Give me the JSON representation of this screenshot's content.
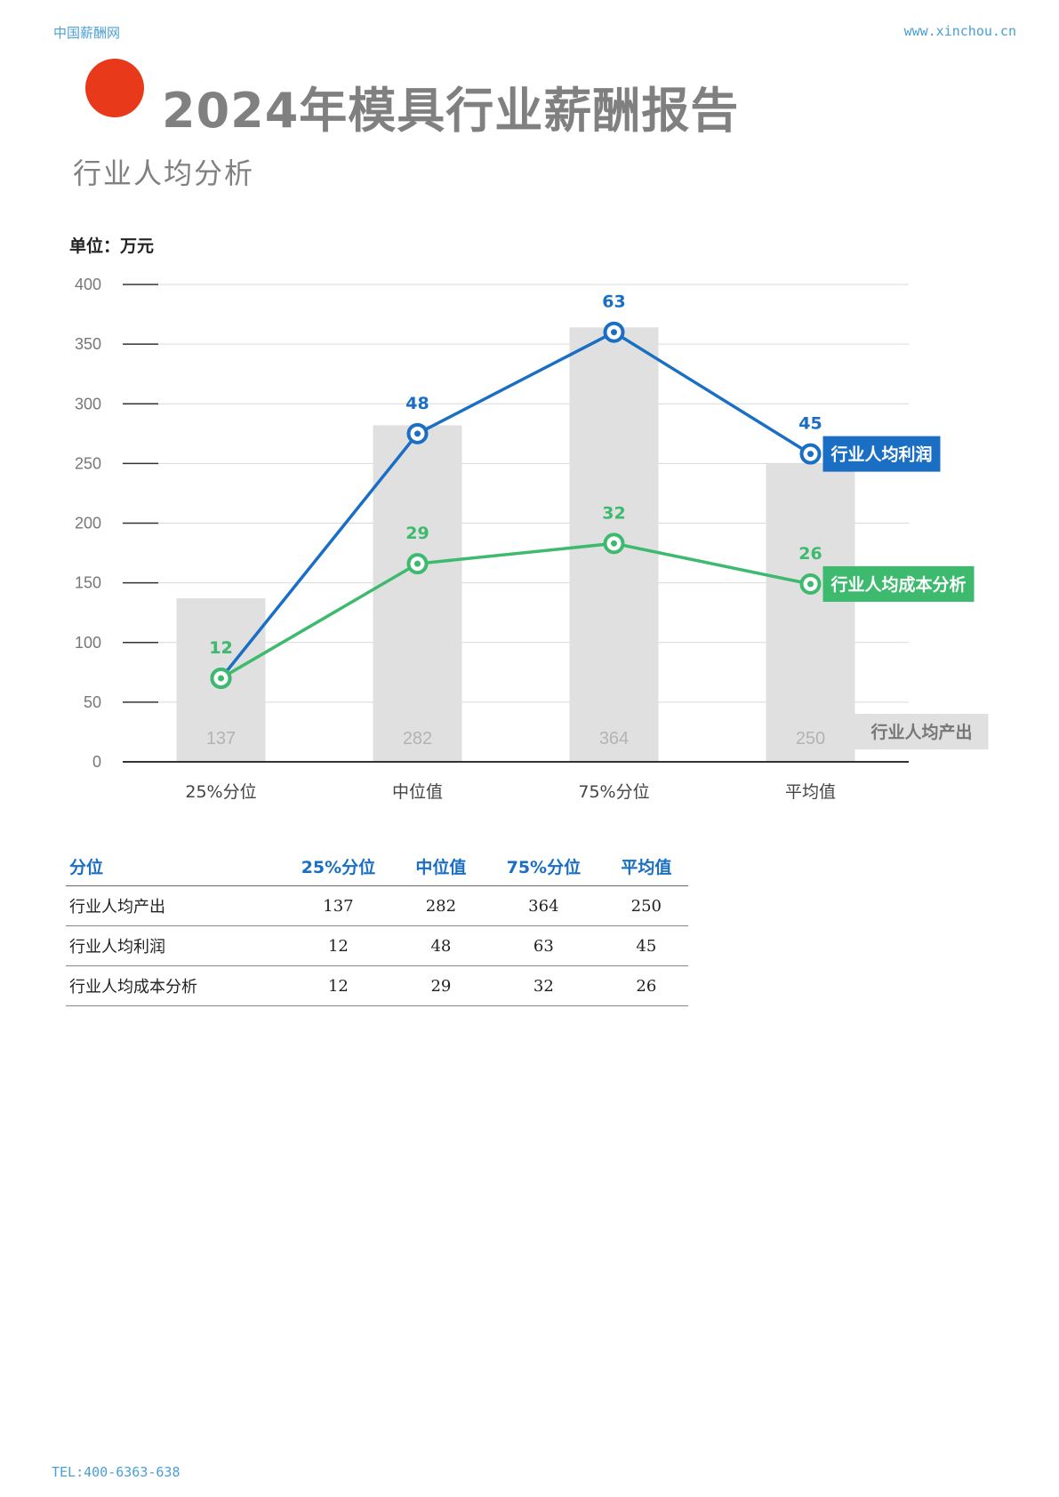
{
  "header": {
    "left": "中国薪酬网",
    "right": "www.xinchou.cn"
  },
  "title": "2024年模具行业薪酬报告",
  "subtitle": "行业人均分析",
  "unit_label": "单位：万元",
  "colors": {
    "accent_dot": "#e8391b",
    "profit": "#1a6fc4",
    "cost": "#3dba6e",
    "bar": "#e0e0e0"
  },
  "chart_data": {
    "type": "bar",
    "categories": [
      "25%分位",
      "中位值",
      "75%分位",
      "平均值"
    ],
    "yticks": [
      0,
      50,
      100,
      150,
      200,
      250,
      300,
      350,
      400
    ],
    "ylim": [
      0,
      400
    ],
    "grid": true,
    "series": [
      {
        "name": "行业人均产出",
        "type": "bar",
        "values": [
          137,
          282,
          364,
          250
        ]
      },
      {
        "name": "行业人均利润",
        "type": "line",
        "labels": [
          12,
          48,
          63,
          45
        ],
        "values": [
          70,
          275,
          360,
          258
        ]
      },
      {
        "name": "行业人均成本分析",
        "type": "line",
        "labels": [
          12,
          29,
          32,
          26
        ],
        "values": [
          70,
          166,
          183,
          149
        ]
      }
    ]
  },
  "table": {
    "headers": [
      "分位",
      "25%分位",
      "中位值",
      "75%分位",
      "平均值"
    ],
    "rows": [
      [
        "行业人均产出",
        "137",
        "282",
        "364",
        "250"
      ],
      [
        "行业人均利润",
        "12",
        "48",
        "63",
        "45"
      ],
      [
        "行业人均成本分析",
        "12",
        "29",
        "32",
        "26"
      ]
    ]
  },
  "footer": "TEL:400-6363-638"
}
